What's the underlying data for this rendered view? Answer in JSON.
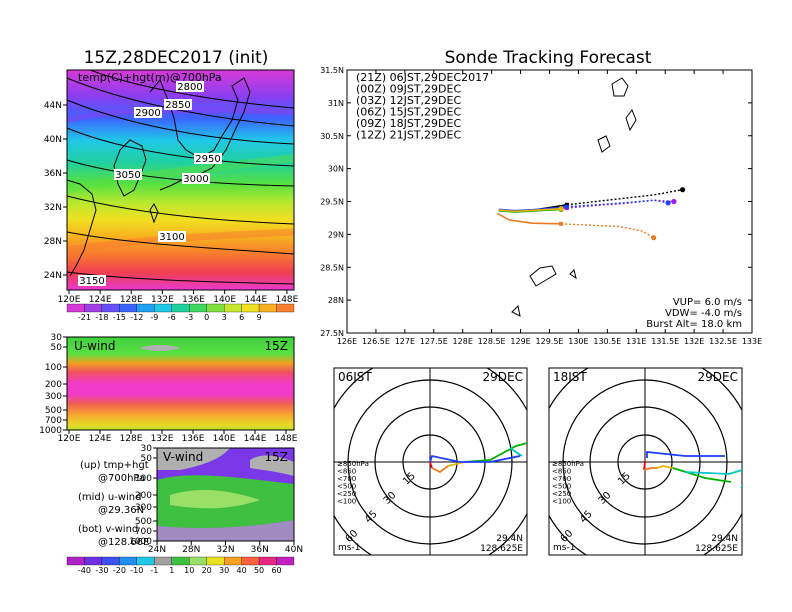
{
  "init_title": "15Z,28DEC2017 (init)",
  "main_title": "Sonde Tracking Forecast",
  "map_panel": {
    "field_label": "temp(C)+hgt(m)@700hPa",
    "x_ticks": [
      "120E",
      "124E",
      "128E",
      "132E",
      "136E",
      "140E",
      "144E",
      "148E"
    ],
    "y_ticks": [
      "24N",
      "28N",
      "32N",
      "36N",
      "40N",
      "44N"
    ],
    "contour_labels": [
      "2800",
      "2850",
      "2900",
      "2950",
      "3000",
      "3050",
      "3100",
      "3150"
    ],
    "colorbar_ticks": [
      "-21",
      "-18",
      "-15",
      "-12",
      "-9",
      "-6",
      "-3",
      "0",
      "3",
      "6",
      "9"
    ]
  },
  "uwind_panel": {
    "label": "U-wind",
    "time": "15Z",
    "y_ticks": [
      "30",
      "50",
      "100",
      "200",
      "300",
      "500",
      "700",
      "1000"
    ],
    "x_ticks": [
      "120E",
      "124E",
      "128E",
      "132E",
      "136E",
      "140E",
      "144E",
      "148E"
    ]
  },
  "vwind_panel": {
    "label": "V-wind",
    "time": "15Z",
    "y_ticks": [
      "30",
      "50",
      "100",
      "200",
      "300",
      "500",
      "700",
      "1000"
    ],
    "x_ticks": [
      "24N",
      "28N",
      "32N",
      "36N",
      "40N"
    ]
  },
  "side_notes": [
    "(up) tmp+hgt",
    "@700hPa",
    "(mid) u-wind",
    "@29.36N",
    "(bot) v-wind",
    "@128.66E"
  ],
  "wind_colorbar_ticks": [
    "-40",
    "-30",
    "-20",
    "-10",
    "-1",
    "1",
    "10",
    "20",
    "30",
    "40",
    "50",
    "60"
  ],
  "tracking": {
    "legend": [
      {
        "text": "(21Z) 06JST,29DEC2017",
        "color": "#000000"
      },
      {
        "text": "(00Z) 09JST,29DEC",
        "color": "#a020f0"
      },
      {
        "text": "(03Z) 12JST,29DEC",
        "color": "#1e3cff"
      },
      {
        "text": "(06Z) 15JST,29DEC",
        "color": "#00b000"
      },
      {
        "text": "(09Z) 18JST,29DEC",
        "color": "#e8b400"
      },
      {
        "text": "(12Z) 21JST,29DEC",
        "color": "#f07820"
      }
    ],
    "x_ticks": [
      "126E",
      "126.5E",
      "127E",
      "127.5E",
      "128E",
      "128.5E",
      "129E",
      "129.5E",
      "130E",
      "130.5E",
      "131E",
      "131.5E",
      "132E",
      "132.5E",
      "133E"
    ],
    "y_ticks": [
      "27.5N",
      "28N",
      "28.5N",
      "29N",
      "29.5N",
      "30N",
      "30.5N",
      "31N",
      "31.5N"
    ],
    "info": [
      "VUP=  6.0 m/s",
      "VDW= -4.0 m/s",
      "Burst Alt= 18.0 km"
    ]
  },
  "chart_data": {
    "type": "line",
    "title": "Sonde Tracking Forecast",
    "xlim": [
      126,
      133
    ],
    "ylim": [
      27.5,
      31.5
    ],
    "series": [
      {
        "name": "(21Z) 06JST,29DEC2017",
        "color": "#000000",
        "x": [
          128.62,
          128.9,
          129.3,
          129.8,
          130.3,
          130.8,
          131.3,
          131.8
        ],
        "y": [
          29.36,
          29.35,
          29.38,
          29.45,
          29.5,
          29.55,
          29.6,
          29.68
        ]
      },
      {
        "name": "(00Z) 09JST,29DEC",
        "color": "#a020f0",
        "x": [
          128.62,
          128.9,
          129.3,
          129.8,
          130.3,
          130.8,
          131.3,
          131.65
        ],
        "y": [
          29.36,
          29.35,
          29.36,
          29.4,
          29.44,
          29.47,
          29.52,
          29.5
        ]
      },
      {
        "name": "(03Z) 12JST,29DEC",
        "color": "#1e3cff",
        "x": [
          128.62,
          128.9,
          129.3,
          129.8,
          130.3,
          130.8,
          131.3,
          131.55
        ],
        "y": [
          29.38,
          29.36,
          29.38,
          29.42,
          29.45,
          29.48,
          29.52,
          29.48
        ]
      },
      {
        "name": "(06Z) 15JST,29DEC",
        "color": "#00b000",
        "x": [
          128.62,
          128.9,
          129.3,
          129.7
        ],
        "y": [
          29.36,
          29.34,
          29.36,
          29.38
        ]
      },
      {
        "name": "(09Z) 18JST,29DEC",
        "color": "#e8b400",
        "x": [
          128.62,
          128.9,
          129.3,
          129.7
        ],
        "y": [
          29.37,
          29.35,
          29.37,
          29.39
        ]
      },
      {
        "name": "(12Z) 21JST,29DEC",
        "color": "#f07820",
        "x": [
          128.6,
          128.8,
          129.2,
          129.7,
          130.2,
          130.7,
          131.1,
          131.3
        ],
        "y": [
          29.32,
          29.22,
          29.17,
          29.16,
          29.14,
          29.12,
          29.05,
          28.95
        ]
      }
    ]
  },
  "polar_left": {
    "time_label": "06JST",
    "date_label": "29DEC",
    "legend": [
      {
        "text": "≥850hPa",
        "color": "#ff0000"
      },
      {
        "text": "<850",
        "color": "#f07820"
      },
      {
        "text": "<700",
        "color": "#e8b400"
      },
      {
        "text": "<500",
        "color": "#00b000"
      },
      {
        "text": "<250",
        "color": "#00c8c8"
      },
      {
        "text": "<100",
        "color": "#1e3cff"
      }
    ],
    "ring_labels": [
      "15",
      "30",
      "45",
      "60"
    ],
    "unit": "ms-1",
    "lat": "29.4N",
    "lon": "128.625E"
  },
  "polar_right": {
    "time_label": "18JST",
    "date_label": "29DEC",
    "legend": [
      {
        "text": "≥850hPa",
        "color": "#ff0000"
      },
      {
        "text": "<850",
        "color": "#f07820"
      },
      {
        "text": "<700",
        "color": "#e8b400"
      },
      {
        "text": "<500",
        "color": "#00b000"
      },
      {
        "text": "<250",
        "color": "#00c8c8"
      },
      {
        "text": "<100",
        "color": "#1e3cff"
      }
    ],
    "ring_labels": [
      "15",
      "30",
      "45",
      "60"
    ],
    "unit": "ms-1",
    "lat": "29.4N",
    "lon": "128.625E"
  }
}
